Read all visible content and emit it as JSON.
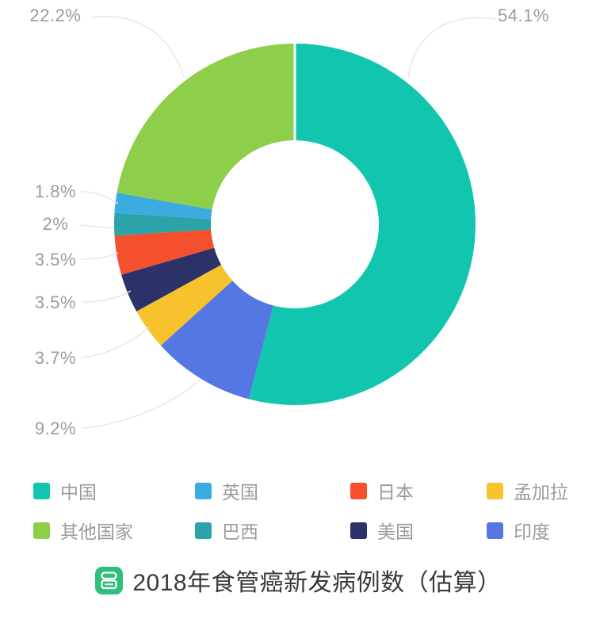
{
  "chart_data": {
    "type": "pie",
    "subtype": "donut",
    "title": "2018年食管癌新发病例数（估算）",
    "unit": "%",
    "direction": "clockwise",
    "start_angle_deg": 0,
    "series": [
      {
        "name": "中国",
        "value": 54.1,
        "label": "54.1%",
        "color": "#12C5AE"
      },
      {
        "name": "印度",
        "value": 9.2,
        "label": "9.2%",
        "color": "#5577E3"
      },
      {
        "name": "孟加拉",
        "value": 3.7,
        "label": "3.7%",
        "color": "#F6C32D"
      },
      {
        "name": "美国",
        "value": 3.5,
        "label": "3.5%",
        "color": "#2C3168"
      },
      {
        "name": "日本",
        "value": 3.5,
        "label": "3.5%",
        "color": "#F5502E"
      },
      {
        "name": "巴西",
        "value": 2,
        "label": "2%",
        "color": "#2BA3A8"
      },
      {
        "name": "英国",
        "value": 1.8,
        "label": "1.8%",
        "color": "#3BABE0"
      },
      {
        "name": "其他国家",
        "value": 22.2,
        "label": "22.2%",
        "color": "#8DCE4A"
      }
    ],
    "legend": {
      "position": "bottom",
      "items": [
        "中国",
        "英国",
        "日本",
        "孟加拉",
        "其他国家",
        "巴西",
        "美国",
        "印度"
      ]
    }
  },
  "footer": {
    "icon": "book-icon",
    "icon_color": "#2FBE7C",
    "title": "2018年食管癌新发病例数（估算）"
  },
  "colors": {
    "label_text": "#9B9B9B",
    "leader_line": "#E4E4E4",
    "title_text": "#3A3A3A",
    "background": "#FFFFFF"
  }
}
